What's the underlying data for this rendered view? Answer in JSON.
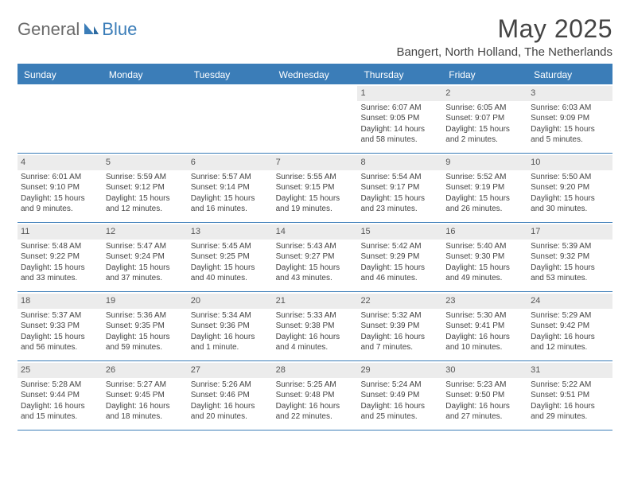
{
  "brand": {
    "part1": "General",
    "part2": "Blue"
  },
  "title": "May 2025",
  "location": "Bangert, North Holland, The Netherlands",
  "colors": {
    "primary": "#3b7db8",
    "header_bg": "#3b7db8",
    "header_text": "#ffffff",
    "daynum_bg": "#ececec",
    "body_text": "#444444",
    "logo_gray": "#6a6a6a"
  },
  "dayHeaders": [
    "Sunday",
    "Monday",
    "Tuesday",
    "Wednesday",
    "Thursday",
    "Friday",
    "Saturday"
  ],
  "weeks": [
    [
      {
        "n": "",
        "sr": "",
        "ss": "",
        "dl": ""
      },
      {
        "n": "",
        "sr": "",
        "ss": "",
        "dl": ""
      },
      {
        "n": "",
        "sr": "",
        "ss": "",
        "dl": ""
      },
      {
        "n": "",
        "sr": "",
        "ss": "",
        "dl": ""
      },
      {
        "n": "1",
        "sr": "Sunrise: 6:07 AM",
        "ss": "Sunset: 9:05 PM",
        "dl": "Daylight: 14 hours and 58 minutes."
      },
      {
        "n": "2",
        "sr": "Sunrise: 6:05 AM",
        "ss": "Sunset: 9:07 PM",
        "dl": "Daylight: 15 hours and 2 minutes."
      },
      {
        "n": "3",
        "sr": "Sunrise: 6:03 AM",
        "ss": "Sunset: 9:09 PM",
        "dl": "Daylight: 15 hours and 5 minutes."
      }
    ],
    [
      {
        "n": "4",
        "sr": "Sunrise: 6:01 AM",
        "ss": "Sunset: 9:10 PM",
        "dl": "Daylight: 15 hours and 9 minutes."
      },
      {
        "n": "5",
        "sr": "Sunrise: 5:59 AM",
        "ss": "Sunset: 9:12 PM",
        "dl": "Daylight: 15 hours and 12 minutes."
      },
      {
        "n": "6",
        "sr": "Sunrise: 5:57 AM",
        "ss": "Sunset: 9:14 PM",
        "dl": "Daylight: 15 hours and 16 minutes."
      },
      {
        "n": "7",
        "sr": "Sunrise: 5:55 AM",
        "ss": "Sunset: 9:15 PM",
        "dl": "Daylight: 15 hours and 19 minutes."
      },
      {
        "n": "8",
        "sr": "Sunrise: 5:54 AM",
        "ss": "Sunset: 9:17 PM",
        "dl": "Daylight: 15 hours and 23 minutes."
      },
      {
        "n": "9",
        "sr": "Sunrise: 5:52 AM",
        "ss": "Sunset: 9:19 PM",
        "dl": "Daylight: 15 hours and 26 minutes."
      },
      {
        "n": "10",
        "sr": "Sunrise: 5:50 AM",
        "ss": "Sunset: 9:20 PM",
        "dl": "Daylight: 15 hours and 30 minutes."
      }
    ],
    [
      {
        "n": "11",
        "sr": "Sunrise: 5:48 AM",
        "ss": "Sunset: 9:22 PM",
        "dl": "Daylight: 15 hours and 33 minutes."
      },
      {
        "n": "12",
        "sr": "Sunrise: 5:47 AM",
        "ss": "Sunset: 9:24 PM",
        "dl": "Daylight: 15 hours and 37 minutes."
      },
      {
        "n": "13",
        "sr": "Sunrise: 5:45 AM",
        "ss": "Sunset: 9:25 PM",
        "dl": "Daylight: 15 hours and 40 minutes."
      },
      {
        "n": "14",
        "sr": "Sunrise: 5:43 AM",
        "ss": "Sunset: 9:27 PM",
        "dl": "Daylight: 15 hours and 43 minutes."
      },
      {
        "n": "15",
        "sr": "Sunrise: 5:42 AM",
        "ss": "Sunset: 9:29 PM",
        "dl": "Daylight: 15 hours and 46 minutes."
      },
      {
        "n": "16",
        "sr": "Sunrise: 5:40 AM",
        "ss": "Sunset: 9:30 PM",
        "dl": "Daylight: 15 hours and 49 minutes."
      },
      {
        "n": "17",
        "sr": "Sunrise: 5:39 AM",
        "ss": "Sunset: 9:32 PM",
        "dl": "Daylight: 15 hours and 53 minutes."
      }
    ],
    [
      {
        "n": "18",
        "sr": "Sunrise: 5:37 AM",
        "ss": "Sunset: 9:33 PM",
        "dl": "Daylight: 15 hours and 56 minutes."
      },
      {
        "n": "19",
        "sr": "Sunrise: 5:36 AM",
        "ss": "Sunset: 9:35 PM",
        "dl": "Daylight: 15 hours and 59 minutes."
      },
      {
        "n": "20",
        "sr": "Sunrise: 5:34 AM",
        "ss": "Sunset: 9:36 PM",
        "dl": "Daylight: 16 hours and 1 minute."
      },
      {
        "n": "21",
        "sr": "Sunrise: 5:33 AM",
        "ss": "Sunset: 9:38 PM",
        "dl": "Daylight: 16 hours and 4 minutes."
      },
      {
        "n": "22",
        "sr": "Sunrise: 5:32 AM",
        "ss": "Sunset: 9:39 PM",
        "dl": "Daylight: 16 hours and 7 minutes."
      },
      {
        "n": "23",
        "sr": "Sunrise: 5:30 AM",
        "ss": "Sunset: 9:41 PM",
        "dl": "Daylight: 16 hours and 10 minutes."
      },
      {
        "n": "24",
        "sr": "Sunrise: 5:29 AM",
        "ss": "Sunset: 9:42 PM",
        "dl": "Daylight: 16 hours and 12 minutes."
      }
    ],
    [
      {
        "n": "25",
        "sr": "Sunrise: 5:28 AM",
        "ss": "Sunset: 9:44 PM",
        "dl": "Daylight: 16 hours and 15 minutes."
      },
      {
        "n": "26",
        "sr": "Sunrise: 5:27 AM",
        "ss": "Sunset: 9:45 PM",
        "dl": "Daylight: 16 hours and 18 minutes."
      },
      {
        "n": "27",
        "sr": "Sunrise: 5:26 AM",
        "ss": "Sunset: 9:46 PM",
        "dl": "Daylight: 16 hours and 20 minutes."
      },
      {
        "n": "28",
        "sr": "Sunrise: 5:25 AM",
        "ss": "Sunset: 9:48 PM",
        "dl": "Daylight: 16 hours and 22 minutes."
      },
      {
        "n": "29",
        "sr": "Sunrise: 5:24 AM",
        "ss": "Sunset: 9:49 PM",
        "dl": "Daylight: 16 hours and 25 minutes."
      },
      {
        "n": "30",
        "sr": "Sunrise: 5:23 AM",
        "ss": "Sunset: 9:50 PM",
        "dl": "Daylight: 16 hours and 27 minutes."
      },
      {
        "n": "31",
        "sr": "Sunrise: 5:22 AM",
        "ss": "Sunset: 9:51 PM",
        "dl": "Daylight: 16 hours and 29 minutes."
      }
    ]
  ]
}
